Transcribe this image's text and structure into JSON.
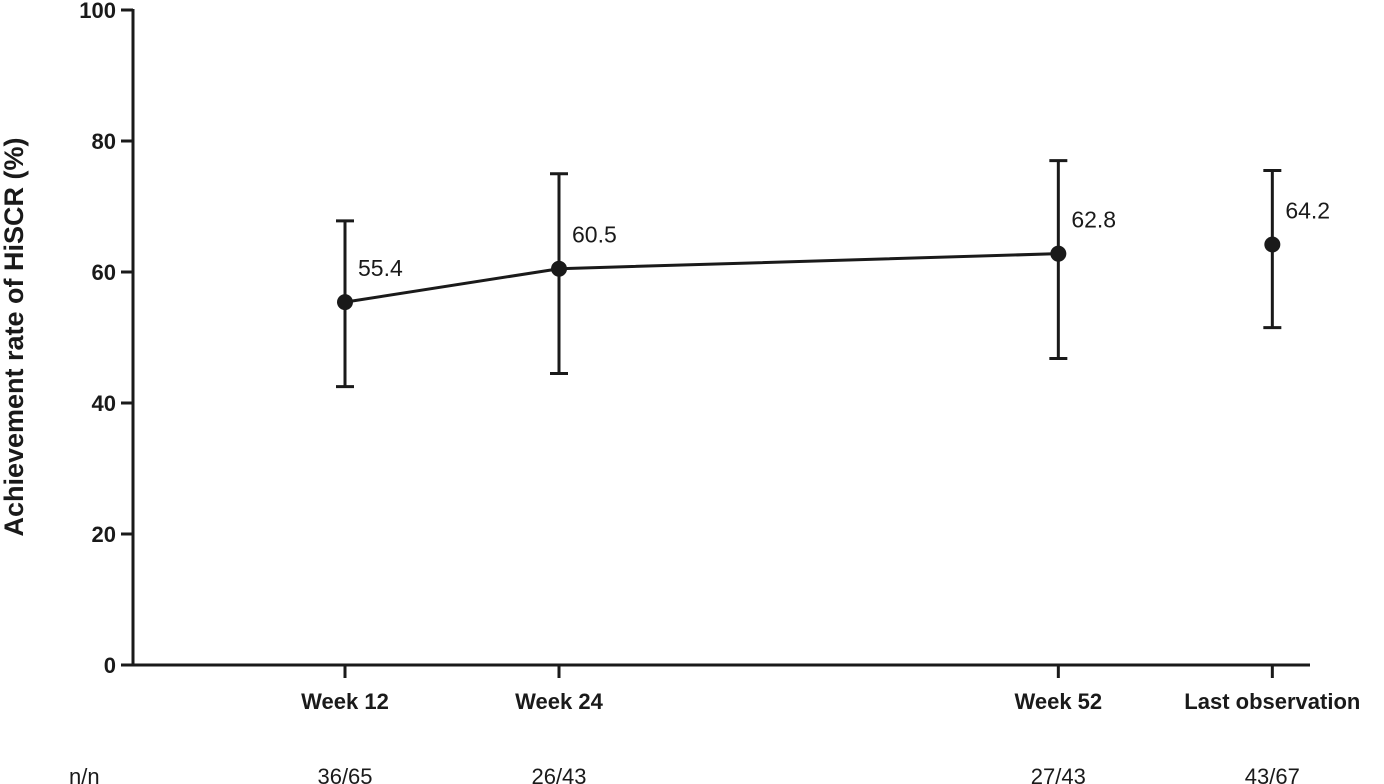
{
  "chart_data": {
    "type": "line",
    "title": "",
    "xlabel": "",
    "ylabel": "Achievement rate of HiSCR (%)",
    "ylim": [
      0,
      100
    ],
    "yticks": [
      0,
      20,
      40,
      60,
      80,
      100
    ],
    "grid": false,
    "legend": "none",
    "categories": [
      "Week 12",
      "Week 24",
      "Week 52",
      "Last observation"
    ],
    "week_positions": [
      12,
      24,
      52,
      64
    ],
    "series": [
      {
        "values": [
          55.4,
          60.5,
          62.8,
          64.2
        ],
        "data_labels": [
          "55.4",
          "60.5",
          "62.8",
          "64.2"
        ],
        "error_low": [
          42.5,
          44.5,
          46.8,
          51.5
        ],
        "error_high": [
          67.8,
          75.0,
          77.0,
          75.5
        ],
        "connected": [
          true,
          true,
          true,
          false
        ]
      }
    ],
    "n_row_label": "n/n",
    "n_values": [
      "36/65",
      "26/43",
      "27/43",
      "43/67"
    ],
    "colors": {
      "ink": "#1a1a1a"
    }
  }
}
